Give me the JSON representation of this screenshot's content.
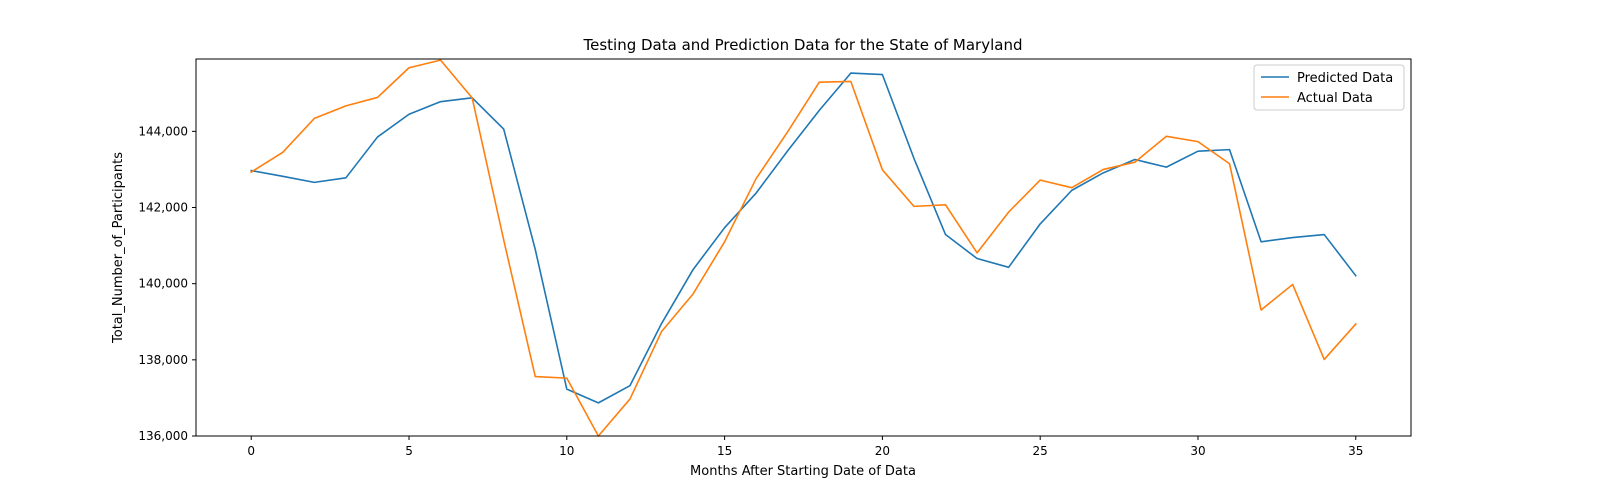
{
  "chart_data": {
    "type": "line",
    "title": "Testing Data and Prediction Data for the State of Maryland",
    "xlabel": "Months After Starting Date of Data",
    "ylabel": "Total_Number_of_Participants",
    "xlim": [
      -1.75,
      36.75
    ],
    "ylim": [
      136000,
      145900
    ],
    "xticks": [
      0,
      5,
      10,
      15,
      20,
      25,
      30,
      35
    ],
    "yticks": [
      136000,
      138000,
      140000,
      142000,
      144000
    ],
    "ytick_labels": [
      "136,000",
      "138,000",
      "140,000",
      "142,000",
      "144,000"
    ],
    "grid": false,
    "legend_position": "top-right",
    "x": [
      0,
      1,
      2,
      3,
      4,
      5,
      6,
      7,
      8,
      9,
      10,
      11,
      12,
      13,
      14,
      15,
      16,
      17,
      18,
      19,
      20,
      21,
      22,
      23,
      24,
      25,
      26,
      27,
      28,
      29,
      30,
      31,
      32,
      33,
      34,
      35
    ],
    "series": [
      {
        "name": "Predicted Data",
        "color": "#1f77b4",
        "values": [
          142970,
          142820,
          142660,
          142780,
          143850,
          144450,
          144780,
          144880,
          144060,
          140900,
          137230,
          136870,
          137320,
          138950,
          140370,
          141470,
          142380,
          143490,
          144550,
          145530,
          145490,
          143290,
          141290,
          140660,
          140430,
          141570,
          142450,
          142910,
          143260,
          143060,
          143480,
          143520,
          141100,
          141210,
          141290,
          140210
        ]
      },
      {
        "name": "Actual Data",
        "color": "#ff7f0e",
        "values": [
          142930,
          143450,
          144340,
          144670,
          144890,
          145670,
          145870,
          144880,
          141150,
          137560,
          137520,
          136000,
          136970,
          138740,
          139730,
          141100,
          142760,
          143990,
          145290,
          145310,
          142990,
          142030,
          142070,
          140810,
          141880,
          142720,
          142520,
          143000,
          143190,
          143870,
          143730,
          143150,
          139310,
          139980,
          138010,
          138940
        ]
      }
    ]
  }
}
